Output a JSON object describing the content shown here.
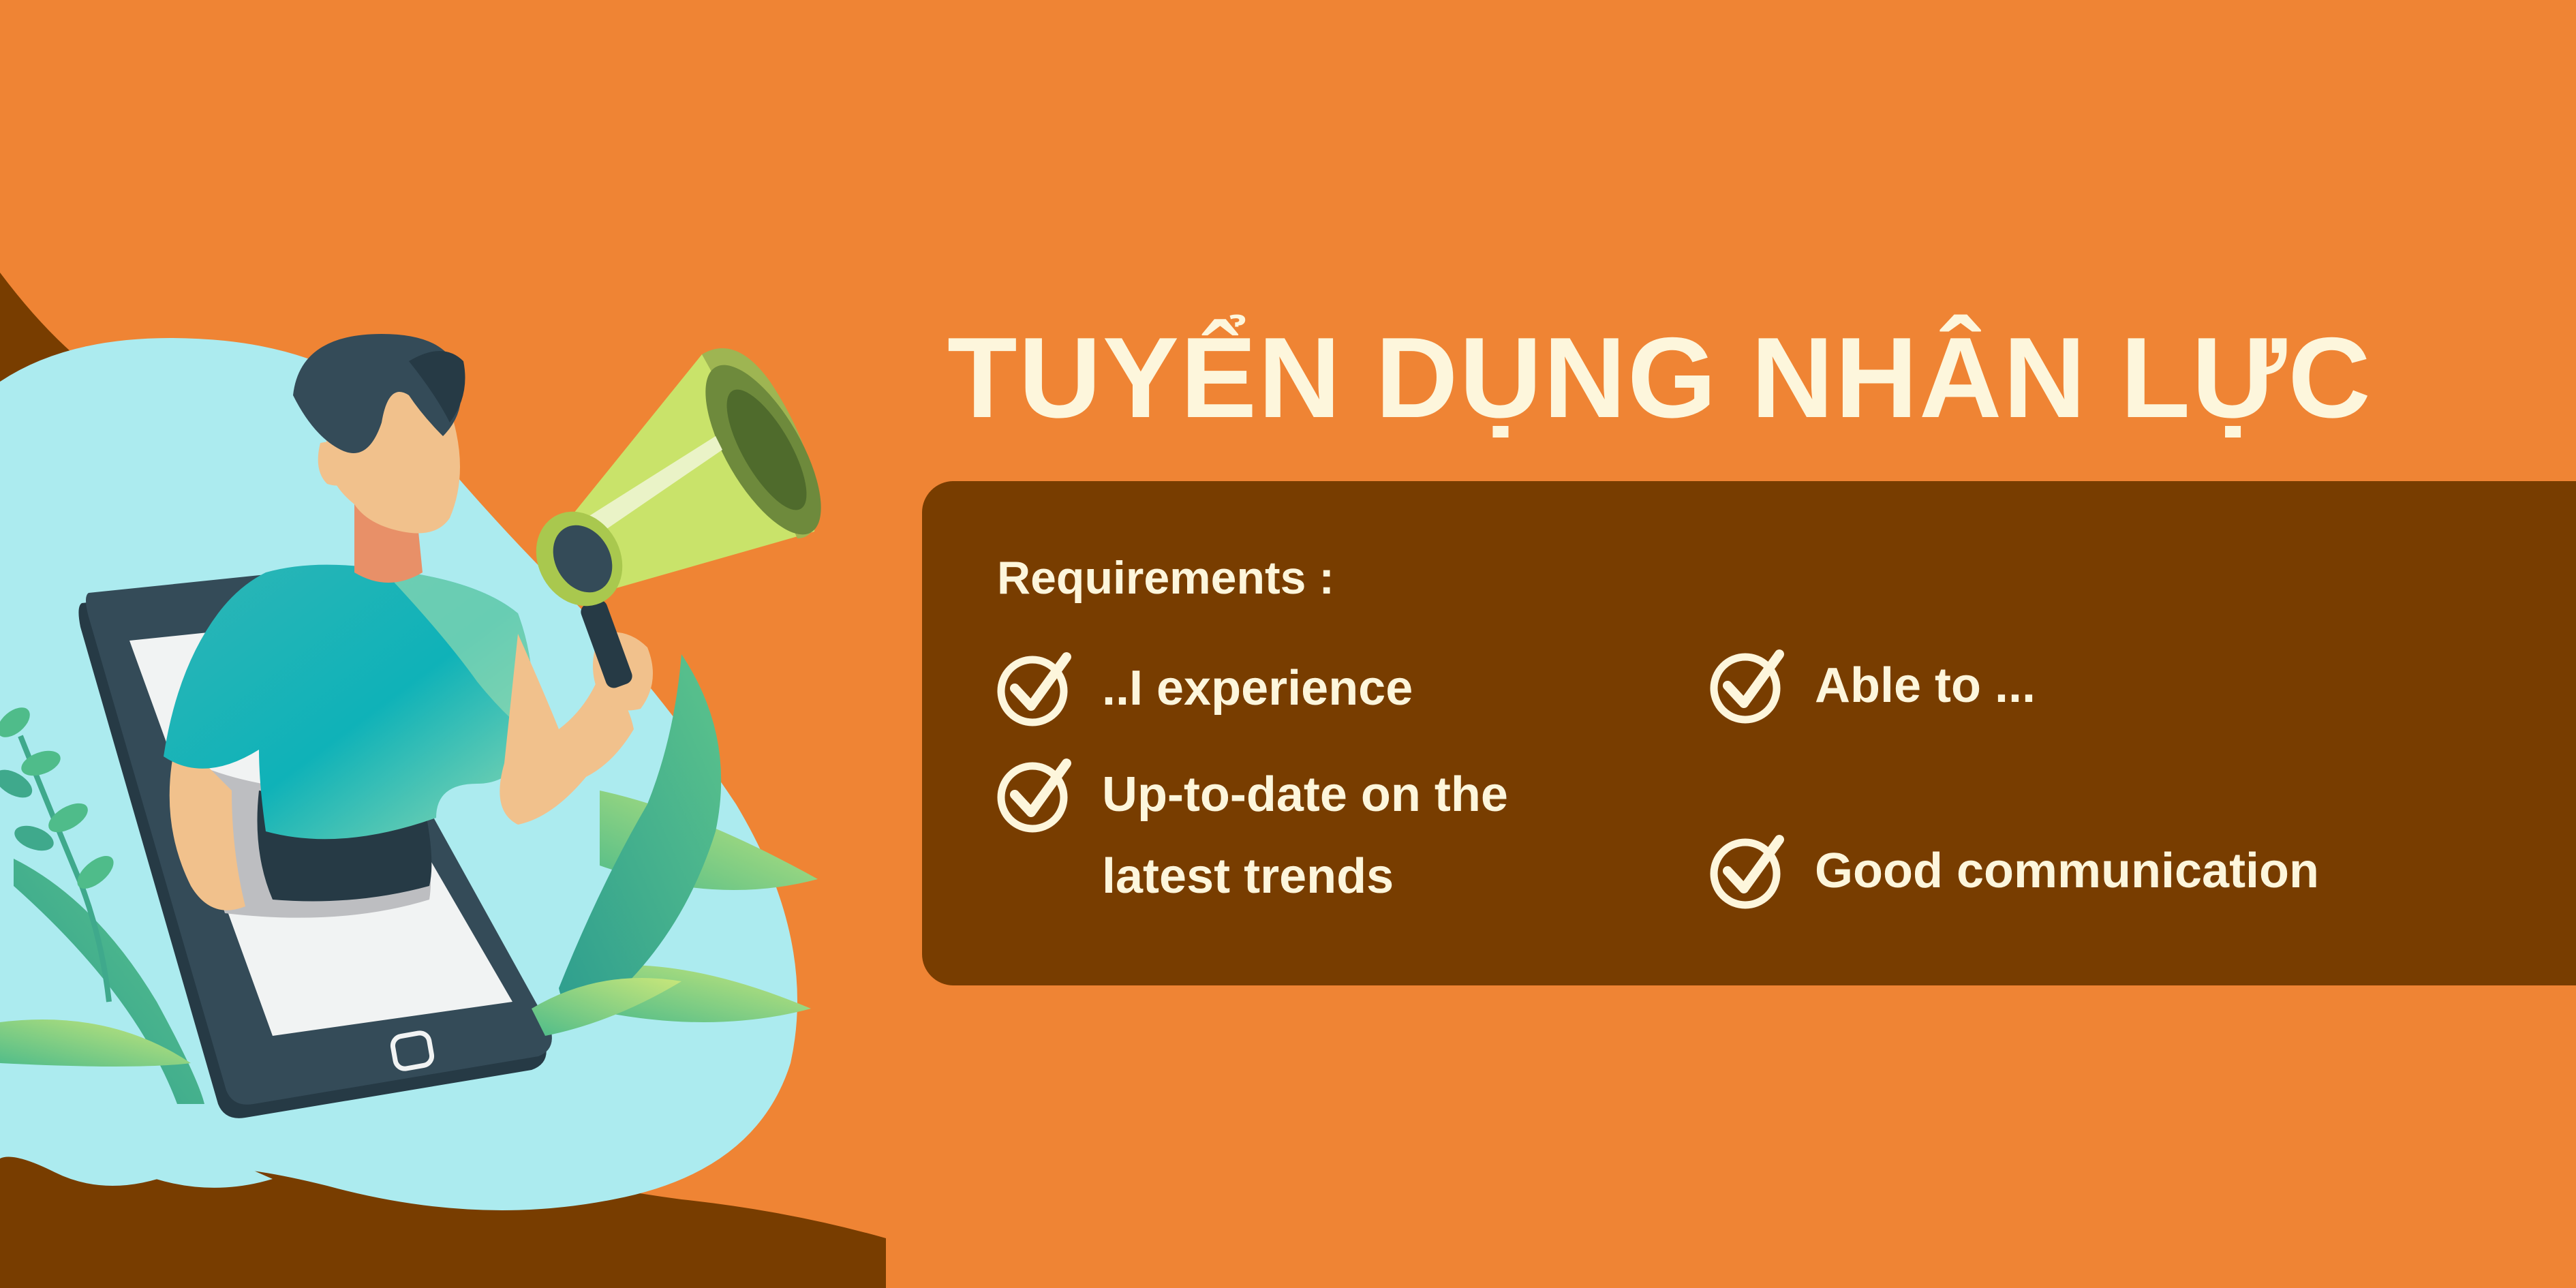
{
  "colors": {
    "background": "#EF8434",
    "panel": "#783D00",
    "text": "#FDF6DC",
    "blob": "#ACEBEF",
    "ground": "#783D00"
  },
  "banner": {
    "title": "TUYỂN DỤNG NHÂN LỰC"
  },
  "requirements": {
    "heading": "Requirements :",
    "items": [
      {
        "label": "..I experience",
        "icon": "check-circle-icon"
      },
      {
        "label": "Able to ...",
        "icon": "check-circle-icon"
      },
      {
        "label_line1": "Up-to-date on the",
        "label_line2": "latest trends",
        "icon": "check-circle-icon"
      },
      {
        "label": "Good communication",
        "icon": "check-circle-icon"
      }
    ]
  },
  "illustration": {
    "subject": "person-with-megaphone-on-phone",
    "icons": [
      "megaphone-icon",
      "smartphone-icon",
      "plant-icon"
    ]
  }
}
